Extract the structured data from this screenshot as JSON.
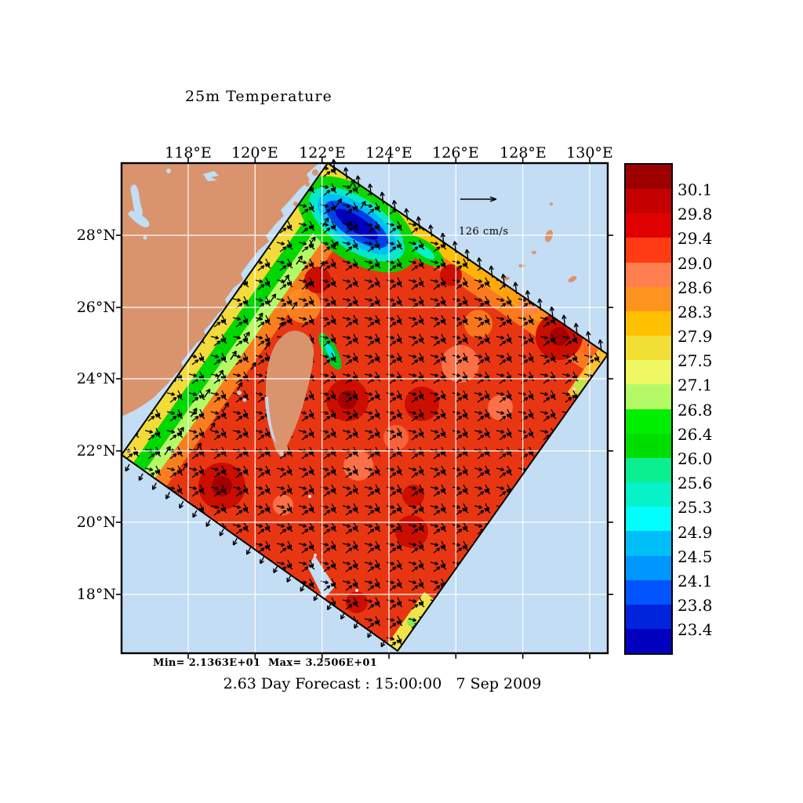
{
  "title": "25m Temperature",
  "axes": {
    "lon_labels": [
      "118°E",
      "120°E",
      "122°E",
      "124°E",
      "126°E",
      "128°E",
      "130°E"
    ],
    "lat_labels": [
      "28°N",
      "26°N",
      "24°N",
      "22°N",
      "20°N",
      "18°N"
    ]
  },
  "colorbar": {
    "labels": [
      "30.1",
      "29.8",
      "29.4",
      "29.0",
      "28.6",
      "28.3",
      "27.9",
      "27.5",
      "27.1",
      "26.8",
      "26.4",
      "26.0",
      "25.6",
      "25.3",
      "24.9",
      "24.5",
      "24.1",
      "23.8",
      "23.4"
    ],
    "colors": [
      "#9E0000",
      "#C50000",
      "#E10000",
      "#FF3B13",
      "#FF7F50",
      "#FF9320",
      "#FFC000",
      "#F2DF35",
      "#EFF862",
      "#B4FA66",
      "#00EE00",
      "#00DE00",
      "#0AEF8F",
      "#06F2C8",
      "#00FFFF",
      "#00BFF8",
      "#0096FF",
      "#0055FF",
      "#0023DC",
      "#0000BE"
    ]
  },
  "scale_arrow": {
    "label": "126 cm/s"
  },
  "stats": {
    "text": "Min= 2.1363E+01  Max= 3.2506E+01"
  },
  "caption": "2.63 Day Forecast : 15:00:00   7 Sep 2009",
  "palette": {
    "ocean": "#C2DDF4",
    "land": "#D9946E",
    "domain_base": "#E93612",
    "eddy_red": "#CC0E00",
    "grid": "#FFFFFF",
    "vector": "#000000",
    "frame": "#000000"
  }
}
